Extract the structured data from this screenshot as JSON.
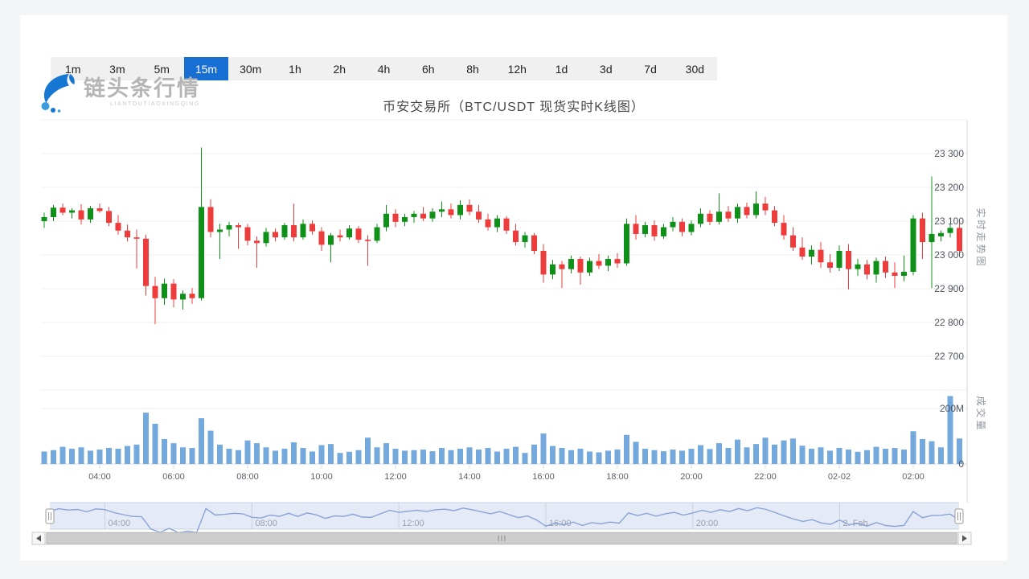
{
  "header": {
    "title": "币安交易所（BTC/USDT 现货实时K线图）"
  },
  "logo": {
    "name": "链头条行情",
    "subtitle": "LIANTOUTIAOXINGQING"
  },
  "toolbar": {
    "intervals": [
      "1m",
      "3m",
      "5m",
      "15m",
      "30m",
      "1h",
      "2h",
      "4h",
      "6h",
      "8h",
      "12h",
      "1d",
      "3d",
      "7d",
      "30d"
    ],
    "selected": "15m"
  },
  "colors": {
    "up": "#0f9018",
    "down": "#ee3b3b",
    "volume_bar": "#74a9dd",
    "grid": "#efeff2",
    "axis_line": "#d9dbe0",
    "border_line": "#d4d6db",
    "axis_text": "#5c626e",
    "price_text": "#4f5560",
    "pane_label": "#9096a0",
    "selected_interval_bg": "#176fd4",
    "nav_line": "#89a3d8",
    "nav_fill": "#e4ebf7",
    "nav_grid": "#c9d1df",
    "nav_text": "#99a0ac",
    "scrollbar_thumb": "#cdcdcd",
    "scrollbar_border": "#b9b9b9",
    "scrollbar_track": "#f2f2f2",
    "logo_blue": "#1577d2",
    "logo_blue_light": "#3d9be0"
  },
  "chart_data": {
    "type": "candlestick+volume",
    "title": "币安交易所（BTC/USDT 现货实时K线图）",
    "pair": "BTC/USDT",
    "exchange": "币安交易所",
    "interval": "15m",
    "pane_labels": {
      "price_pane": "实时走势图",
      "volume_pane": "成交量"
    },
    "price_axis": {
      "tick_values": [
        23300,
        23200,
        23100,
        23000,
        22900,
        22800,
        22700
      ],
      "tick_labels": [
        "23 300",
        "23 200",
        "23 100",
        "23 000",
        "22 900",
        "22 800",
        "22 700"
      ]
    },
    "volume_axis": {
      "tick_labels": [
        "200M",
        "0"
      ],
      "tick_values_m": [
        200,
        0
      ],
      "unit": "M"
    },
    "x_axis": {
      "tick_labels": [
        "04:00",
        "06:00",
        "08:00",
        "10:00",
        "12:00",
        "14:00",
        "16:00",
        "18:00",
        "20:00",
        "22:00",
        "02-02",
        "02:00"
      ],
      "tick_candle_indices": [
        6,
        14,
        22,
        30,
        38,
        46,
        54,
        62,
        70,
        78,
        86,
        94
      ]
    },
    "navigator": {
      "tick_labels": [
        "04:00",
        "08:00",
        "12:00",
        "16:00",
        "20:00",
        "2. Feb"
      ],
      "tick_candle_indices": [
        6,
        22,
        38,
        54,
        70,
        86
      ]
    },
    "candles_format": [
      "open",
      "high",
      "low",
      "close",
      "volume_millions"
    ],
    "candles": [
      [
        23100,
        23125,
        23080,
        23112,
        45
      ],
      [
        23112,
        23148,
        23100,
        23140,
        50
      ],
      [
        23140,
        23152,
        23118,
        23125,
        62
      ],
      [
        23125,
        23138,
        23108,
        23132,
        55
      ],
      [
        23132,
        23150,
        23090,
        23105,
        60
      ],
      [
        23105,
        23145,
        23095,
        23138,
        48
      ],
      [
        23138,
        23152,
        23125,
        23130,
        52
      ],
      [
        23130,
        23142,
        23085,
        23095,
        58
      ],
      [
        23095,
        23118,
        23060,
        23072,
        55
      ],
      [
        23072,
        23090,
        23040,
        23052,
        65
      ],
      [
        23052,
        23075,
        22960,
        23048,
        70
      ],
      [
        23048,
        23060,
        22880,
        22908,
        185
      ],
      [
        22908,
        22935,
        22795,
        22872,
        145
      ],
      [
        22872,
        22930,
        22852,
        22915,
        90
      ],
      [
        22915,
        22928,
        22845,
        22868,
        75
      ],
      [
        22868,
        22895,
        22838,
        22885,
        60
      ],
      [
        22885,
        22902,
        22855,
        22872,
        58
      ],
      [
        22872,
        23318,
        22865,
        23142,
        165
      ],
      [
        23142,
        23165,
        23052,
        23068,
        120
      ],
      [
        23068,
        23092,
        22988,
        23075,
        70
      ],
      [
        23075,
        23098,
        23055,
        23088,
        55
      ],
      [
        23088,
        23095,
        23018,
        23082,
        50
      ],
      [
        23082,
        23092,
        23028,
        23042,
        85
      ],
      [
        23042,
        23055,
        22962,
        23035,
        75
      ],
      [
        23035,
        23080,
        23025,
        23068,
        60
      ],
      [
        23068,
        23078,
        23040,
        23052,
        48
      ],
      [
        23052,
        23095,
        23045,
        23088,
        55
      ],
      [
        23088,
        23152,
        23040,
        23052,
        78
      ],
      [
        23052,
        23105,
        23045,
        23092,
        58
      ],
      [
        23092,
        23102,
        23060,
        23070,
        45
      ],
      [
        23070,
        23082,
        23012,
        23030,
        68
      ],
      [
        23030,
        23065,
        22978,
        23058,
        72
      ],
      [
        23058,
        23075,
        23040,
        23052,
        40
      ],
      [
        23052,
        23088,
        23045,
        23078,
        44
      ],
      [
        23078,
        23085,
        23035,
        23045,
        50
      ],
      [
        23045,
        23058,
        22968,
        23042,
        95
      ],
      [
        23042,
        23092,
        23035,
        23082,
        60
      ],
      [
        23082,
        23148,
        23070,
        23122,
        75
      ],
      [
        23122,
        23135,
        23082,
        23098,
        55
      ],
      [
        23098,
        23122,
        23085,
        23112,
        48
      ],
      [
        23112,
        23130,
        23095,
        23122,
        50
      ],
      [
        23122,
        23142,
        23100,
        23108,
        52
      ],
      [
        23108,
        23138,
        23098,
        23128,
        46
      ],
      [
        23128,
        23158,
        23112,
        23135,
        58
      ],
      [
        23135,
        23152,
        23108,
        23118,
        50
      ],
      [
        23118,
        23162,
        23105,
        23148,
        55
      ],
      [
        23148,
        23165,
        23118,
        23128,
        60
      ],
      [
        23128,
        23148,
        23095,
        23105,
        52
      ],
      [
        23105,
        23122,
        23072,
        23082,
        58
      ],
      [
        23082,
        23118,
        23068,
        23108,
        45
      ],
      [
        23108,
        23115,
        23062,
        23072,
        55
      ],
      [
        23072,
        23092,
        23028,
        23038,
        62
      ],
      [
        23038,
        23068,
        23022,
        23058,
        40
      ],
      [
        23058,
        23065,
        23002,
        23012,
        70
      ],
      [
        23012,
        23032,
        22918,
        22942,
        110
      ],
      [
        22942,
        22985,
        22928,
        22972,
        65
      ],
      [
        22972,
        22982,
        22902,
        22958,
        58
      ],
      [
        22958,
        22998,
        22945,
        22988,
        50
      ],
      [
        22988,
        22995,
        22912,
        22948,
        55
      ],
      [
        22948,
        22992,
        22938,
        22982,
        45
      ],
      [
        22982,
        23002,
        22958,
        22968,
        42
      ],
      [
        22968,
        22998,
        22952,
        22988,
        48
      ],
      [
        22988,
        23005,
        22962,
        22975,
        52
      ],
      [
        22975,
        23108,
        22968,
        23092,
        105
      ],
      [
        23092,
        23118,
        23045,
        23062,
        80
      ],
      [
        23062,
        23098,
        23052,
        23088,
        55
      ],
      [
        23088,
        23102,
        23042,
        23055,
        50
      ],
      [
        23055,
        23092,
        23048,
        23082,
        46
      ],
      [
        23082,
        23112,
        23070,
        23098,
        52
      ],
      [
        23098,
        23108,
        23055,
        23068,
        48
      ],
      [
        23068,
        23102,
        23058,
        23092,
        55
      ],
      [
        23092,
        23138,
        23082,
        23122,
        68
      ],
      [
        23122,
        23132,
        23088,
        23098,
        54
      ],
      [
        23098,
        23182,
        23090,
        23128,
        75
      ],
      [
        23128,
        23145,
        23098,
        23108,
        58
      ],
      [
        23108,
        23152,
        23095,
        23142,
        88
      ],
      [
        23142,
        23155,
        23108,
        23118,
        60
      ],
      [
        23118,
        23188,
        23108,
        23152,
        72
      ],
      [
        23152,
        23172,
        23118,
        23132,
        95
      ],
      [
        23132,
        23145,
        23085,
        23095,
        70
      ],
      [
        23095,
        23118,
        23045,
        23058,
        85
      ],
      [
        23058,
        23082,
        23012,
        23022,
        92
      ],
      [
        23022,
        23052,
        22985,
        22995,
        66
      ],
      [
        22995,
        23028,
        22972,
        23015,
        55
      ],
      [
        23015,
        23038,
        22962,
        22978,
        60
      ],
      [
        22978,
        23002,
        22948,
        22962,
        48
      ],
      [
        22962,
        23028,
        22952,
        23012,
        58
      ],
      [
        23012,
        23032,
        22898,
        22958,
        52
      ],
      [
        22958,
        22988,
        22938,
        22972,
        44
      ],
      [
        22972,
        22985,
        22928,
        22942,
        50
      ],
      [
        22942,
        22992,
        22918,
        22982,
        62
      ],
      [
        22982,
        22995,
        22932,
        22948,
        55
      ],
      [
        22948,
        22978,
        22902,
        22938,
        58
      ],
      [
        22938,
        22998,
        22922,
        22950,
        52
      ],
      [
        22950,
        23118,
        22940,
        23108,
        118
      ],
      [
        23108,
        23125,
        22988,
        23038,
        90
      ],
      [
        23038,
        23232,
        22902,
        23062,
        82
      ],
      [
        23055,
        23072,
        23040,
        23065,
        60
      ],
      [
        23065,
        23092,
        23052,
        23080,
        245
      ],
      [
        23080,
        23102,
        22998,
        23012,
        92
      ]
    ]
  }
}
